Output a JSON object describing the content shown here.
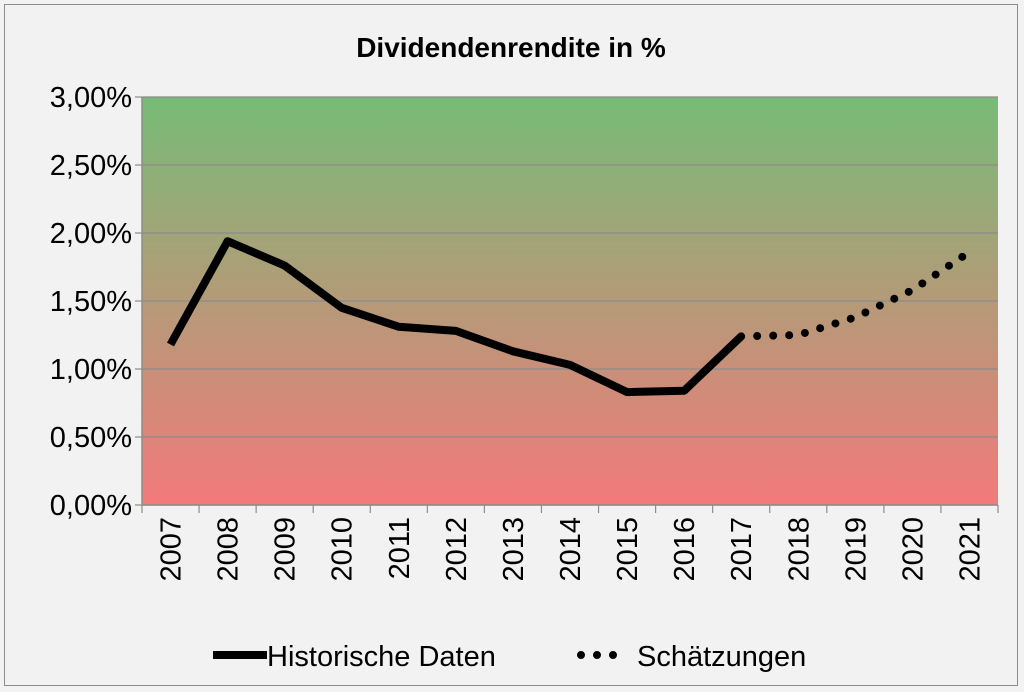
{
  "chart_data": {
    "type": "line",
    "title": "Dividendenrendite in %",
    "xlabel": "",
    "ylabel": "",
    "categories": [
      "2007",
      "2008",
      "2009",
      "2010",
      "2011",
      "2012",
      "2013",
      "2014",
      "2015",
      "2016",
      "2017",
      "2018",
      "2019",
      "2020",
      "2021"
    ],
    "ylim": [
      0,
      0.03
    ],
    "yticks": [
      0,
      0.005,
      0.01,
      0.015,
      0.02,
      0.025,
      0.03
    ],
    "ytick_labels": [
      "0,00%",
      "0,50%",
      "1,00%",
      "1,50%",
      "2,00%",
      "2,50%",
      "3,00%"
    ],
    "grid": true,
    "legend_position": "bottom",
    "background_gradient": {
      "top": "#77bb77",
      "bottom": "#f27a7a"
    },
    "series": [
      {
        "name": "Historische Daten",
        "style": "solid",
        "color": "#000000",
        "values": [
          0.0118,
          0.0194,
          0.0176,
          0.0145,
          0.0131,
          0.0128,
          0.0113,
          0.0103,
          0.0083,
          0.0084,
          0.0124,
          null,
          null,
          null,
          null
        ]
      },
      {
        "name": "Schätzungen",
        "style": "dotted",
        "color": "#000000",
        "values": [
          null,
          null,
          null,
          null,
          null,
          null,
          null,
          null,
          null,
          null,
          0.0124,
          0.0125,
          0.0138,
          0.0158,
          0.0186
        ]
      }
    ]
  }
}
